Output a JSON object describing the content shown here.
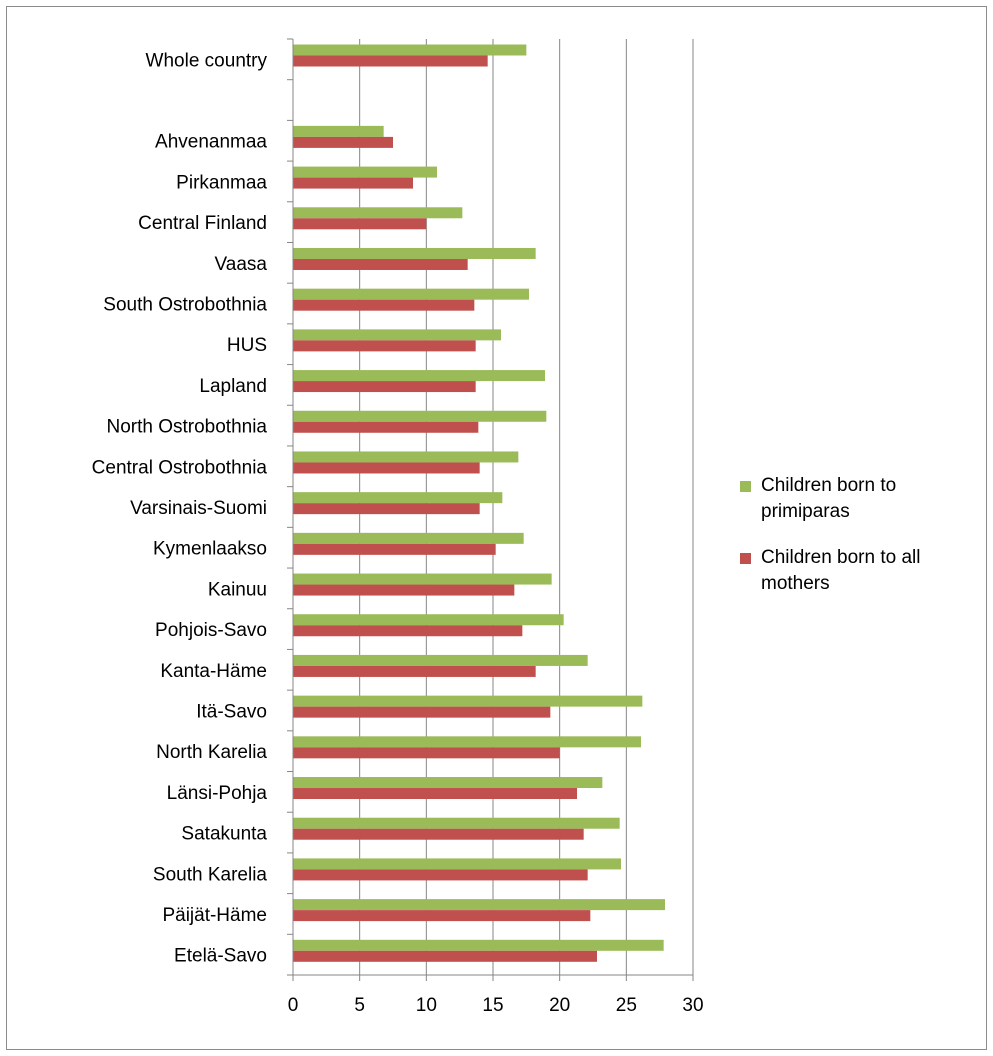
{
  "chart_data": {
    "type": "bar",
    "orientation": "horizontal",
    "categories": [
      "Whole country",
      "",
      "Ahvenanmaa",
      "Pirkanmaa",
      "Central Finland",
      "Vaasa",
      "South Ostrobothnia",
      "HUS",
      "Lapland",
      "North Ostrobothnia",
      "Central Ostrobothnia",
      "Varsinais-Suomi",
      "Kymenlaakso",
      "Kainuu",
      "Pohjois-Savo",
      "Kanta-Häme",
      "Itä-Savo",
      "North Karelia",
      "Länsi-Pohja",
      "Satakunta",
      "South Karelia",
      "Päijät-Häme",
      "Etelä-Savo"
    ],
    "series": [
      {
        "name": "Children born to primiparas",
        "color": "#9bbb59",
        "values": [
          17.5,
          null,
          6.8,
          10.8,
          12.7,
          18.2,
          17.7,
          15.6,
          18.9,
          19.0,
          16.9,
          15.7,
          17.3,
          19.4,
          20.3,
          22.1,
          26.2,
          26.1,
          23.2,
          24.5,
          24.6,
          27.9,
          27.8
        ]
      },
      {
        "name": "Children born to all mothers",
        "color": "#c0504d",
        "values": [
          14.6,
          null,
          7.5,
          9.0,
          10.0,
          13.1,
          13.6,
          13.7,
          13.7,
          13.9,
          14.0,
          14.0,
          15.2,
          16.6,
          17.2,
          18.2,
          19.3,
          20.0,
          21.3,
          21.8,
          22.1,
          22.3,
          22.8
        ]
      }
    ],
    "xlim": [
      0,
      30
    ],
    "xticks": [
      "0",
      "5",
      "10",
      "15",
      "20",
      "25",
      "30"
    ],
    "grid": true,
    "legend_position": "right"
  }
}
